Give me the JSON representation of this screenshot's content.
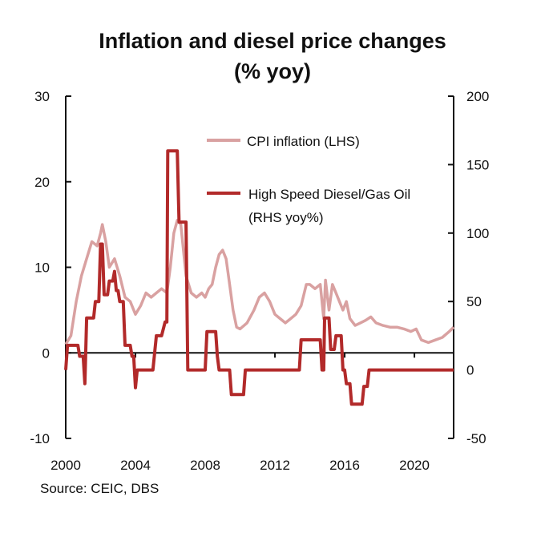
{
  "chart_data": {
    "type": "line",
    "title": "Inflation and diesel price changes",
    "subtitle": "(% yoy)",
    "source": "Source: CEIC, DBS",
    "xlim": [
      2000,
      2022.25
    ],
    "ylim_left": [
      -10,
      30
    ],
    "ylim_right": [
      -50,
      200
    ],
    "x_ticks": [
      2000,
      2004,
      2008,
      2012,
      2016,
      2020
    ],
    "x_tick_labels": [
      "2000",
      "2004",
      "2008",
      "2012",
      "2016",
      "2020"
    ],
    "y_left_ticks": [
      -10,
      0,
      10,
      20,
      30
    ],
    "y_left_tick_labels": [
      "-10",
      "0",
      "10",
      "20",
      "30"
    ],
    "y_right_ticks": [
      -50,
      0,
      50,
      100,
      150,
      200
    ],
    "y_right_tick_labels": [
      "-50",
      "0",
      "50",
      "100",
      "150",
      "200"
    ],
    "series": [
      {
        "name": "CPI inflation (LHS)",
        "axis": "left",
        "color": "#d9a1a1",
        "points": [
          [
            2000.0,
            1.0
          ],
          [
            2000.3,
            2.0
          ],
          [
            2000.6,
            6.0
          ],
          [
            2000.9,
            9.0
          ],
          [
            2001.2,
            11.0
          ],
          [
            2001.5,
            13.0
          ],
          [
            2001.8,
            12.5
          ],
          [
            2002.0,
            14.0
          ],
          [
            2002.1,
            15.0
          ],
          [
            2002.3,
            13.0
          ],
          [
            2002.5,
            10.0
          ],
          [
            2002.8,
            11.0
          ],
          [
            2003.1,
            9.0
          ],
          [
            2003.4,
            6.5
          ],
          [
            2003.7,
            6.0
          ],
          [
            2004.0,
            4.5
          ],
          [
            2004.3,
            5.5
          ],
          [
            2004.6,
            7.0
          ],
          [
            2004.9,
            6.5
          ],
          [
            2005.2,
            7.0
          ],
          [
            2005.5,
            7.5
          ],
          [
            2005.8,
            7.0
          ],
          [
            2006.0,
            10.0
          ],
          [
            2006.2,
            14.0
          ],
          [
            2006.4,
            15.5
          ],
          [
            2006.6,
            15.0
          ],
          [
            2006.9,
            9.0
          ],
          [
            2007.2,
            7.0
          ],
          [
            2007.5,
            6.5
          ],
          [
            2007.8,
            7.0
          ],
          [
            2008.0,
            6.5
          ],
          [
            2008.2,
            7.5
          ],
          [
            2008.4,
            8.0
          ],
          [
            2008.6,
            10.0
          ],
          [
            2008.8,
            11.5
          ],
          [
            2009.0,
            12.0
          ],
          [
            2009.2,
            11.0
          ],
          [
            2009.4,
            8.0
          ],
          [
            2009.6,
            5.0
          ],
          [
            2009.8,
            3.0
          ],
          [
            2010.0,
            2.8
          ],
          [
            2010.4,
            3.5
          ],
          [
            2010.8,
            5.0
          ],
          [
            2011.1,
            6.5
          ],
          [
            2011.4,
            7.0
          ],
          [
            2011.7,
            6.0
          ],
          [
            2012.0,
            4.5
          ],
          [
            2012.3,
            4.0
          ],
          [
            2012.6,
            3.5
          ],
          [
            2012.9,
            4.0
          ],
          [
            2013.2,
            4.5
          ],
          [
            2013.5,
            5.5
          ],
          [
            2013.8,
            8.0
          ],
          [
            2014.0,
            8.0
          ],
          [
            2014.3,
            7.5
          ],
          [
            2014.6,
            8.0
          ],
          [
            2014.8,
            4.0
          ],
          [
            2014.9,
            8.5
          ],
          [
            2015.1,
            5.0
          ],
          [
            2015.3,
            8.0
          ],
          [
            2015.5,
            7.0
          ],
          [
            2015.7,
            6.0
          ],
          [
            2015.9,
            5.0
          ],
          [
            2016.1,
            6.0
          ],
          [
            2016.3,
            4.0
          ],
          [
            2016.6,
            3.2
          ],
          [
            2016.9,
            3.5
          ],
          [
            2017.2,
            3.8
          ],
          [
            2017.5,
            4.2
          ],
          [
            2017.8,
            3.5
          ],
          [
            2018.2,
            3.2
          ],
          [
            2018.6,
            3.0
          ],
          [
            2019.0,
            3.0
          ],
          [
            2019.4,
            2.8
          ],
          [
            2019.8,
            2.5
          ],
          [
            2020.1,
            2.8
          ],
          [
            2020.4,
            1.5
          ],
          [
            2020.8,
            1.2
          ],
          [
            2021.2,
            1.5
          ],
          [
            2021.6,
            1.8
          ],
          [
            2022.0,
            2.5
          ],
          [
            2022.25,
            3.0
          ]
        ]
      },
      {
        "name": "High Speed Diesel/Gas Oil (RHS yoy%)",
        "name_line1": "High Speed Diesel/Gas Oil",
        "name_line2": "(RHS yoy%)",
        "axis": "right",
        "color": "#b22a2a",
        "points": [
          [
            2000.0,
            0
          ],
          [
            2000.1,
            18
          ],
          [
            2000.7,
            18
          ],
          [
            2000.8,
            10
          ],
          [
            2001.0,
            10
          ],
          [
            2001.1,
            -10
          ],
          [
            2001.2,
            38
          ],
          [
            2001.6,
            38
          ],
          [
            2001.7,
            50
          ],
          [
            2001.9,
            50
          ],
          [
            2002.0,
            92
          ],
          [
            2002.1,
            92
          ],
          [
            2002.2,
            55
          ],
          [
            2002.4,
            55
          ],
          [
            2002.5,
            65
          ],
          [
            2002.7,
            65
          ],
          [
            2002.8,
            72
          ],
          [
            2002.9,
            58
          ],
          [
            2003.0,
            58
          ],
          [
            2003.1,
            50
          ],
          [
            2003.3,
            50
          ],
          [
            2003.4,
            18
          ],
          [
            2003.7,
            18
          ],
          [
            2003.8,
            10
          ],
          [
            2003.9,
            10
          ],
          [
            2004.0,
            -13
          ],
          [
            2004.1,
            0
          ],
          [
            2005.0,
            0
          ],
          [
            2005.2,
            25
          ],
          [
            2005.5,
            25
          ],
          [
            2005.7,
            35
          ],
          [
            2005.8,
            35
          ],
          [
            2005.85,
            160
          ],
          [
            2006.4,
            160
          ],
          [
            2006.5,
            108
          ],
          [
            2006.9,
            108
          ],
          [
            2007.0,
            0
          ],
          [
            2008.0,
            0
          ],
          [
            2008.1,
            28
          ],
          [
            2008.6,
            28
          ],
          [
            2008.7,
            10
          ],
          [
            2008.8,
            0
          ],
          [
            2009.4,
            0
          ],
          [
            2009.5,
            -18
          ],
          [
            2010.2,
            -18
          ],
          [
            2010.3,
            0
          ],
          [
            2013.4,
            0
          ],
          [
            2013.5,
            22
          ],
          [
            2014.6,
            22
          ],
          [
            2014.7,
            0
          ],
          [
            2014.8,
            0
          ],
          [
            2014.85,
            38
          ],
          [
            2015.1,
            38
          ],
          [
            2015.2,
            15
          ],
          [
            2015.4,
            15
          ],
          [
            2015.5,
            25
          ],
          [
            2015.8,
            25
          ],
          [
            2015.9,
            0
          ],
          [
            2016.0,
            0
          ],
          [
            2016.1,
            -10
          ],
          [
            2016.3,
            -10
          ],
          [
            2016.4,
            -25
          ],
          [
            2017.0,
            -25
          ],
          [
            2017.1,
            -12
          ],
          [
            2017.3,
            -12
          ],
          [
            2017.4,
            0
          ],
          [
            2022.25,
            0
          ]
        ]
      }
    ]
  }
}
